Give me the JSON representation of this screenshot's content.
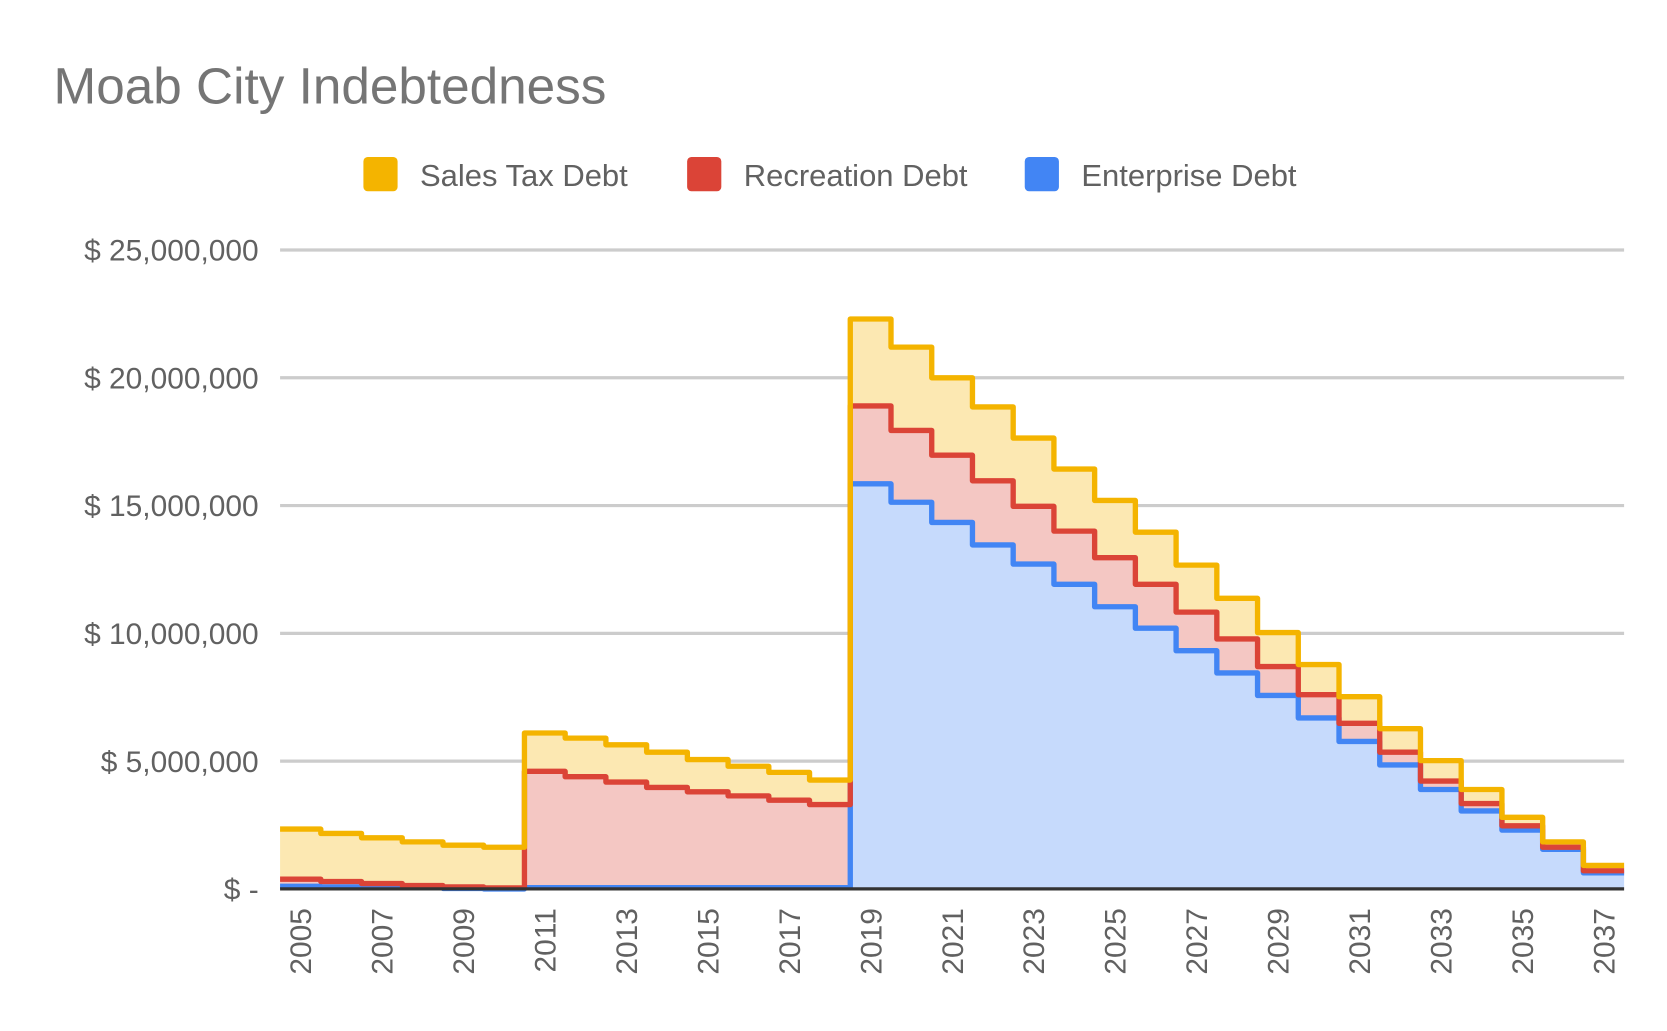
{
  "chart_data": {
    "type": "area",
    "stacked": true,
    "stepped": true,
    "title": "Moab City Indebtedness",
    "xlabel": "",
    "ylabel": "",
    "ylim": [
      0,
      25000000
    ],
    "y_ticks": [
      0,
      5000000,
      10000000,
      15000000,
      20000000,
      25000000
    ],
    "y_tick_labels": [
      "$ -",
      "$ 5,000,000",
      "$ 10,000,000",
      "$ 15,000,000",
      "$ 20,000,000",
      "$ 25,000,000"
    ],
    "x_tick_labels": [
      "2005",
      "2007",
      "2009",
      "2011",
      "2013",
      "2015",
      "2017",
      "2019",
      "2021",
      "2023",
      "2025",
      "2027",
      "2029",
      "2031",
      "2033",
      "2035",
      "2037"
    ],
    "grid": true,
    "legend_position": "top",
    "x": [
      2005,
      2006,
      2007,
      2008,
      2009,
      2010,
      2011,
      2012,
      2013,
      2014,
      2015,
      2016,
      2017,
      2018,
      2019,
      2020,
      2021,
      2022,
      2023,
      2024,
      2025,
      2026,
      2027,
      2028,
      2029,
      2030,
      2031,
      2032,
      2033,
      2034,
      2035,
      2036,
      2037
    ],
    "series": [
      {
        "name": "Enterprise Debt",
        "color": "#4285f4",
        "fill": "#c6dafc",
        "values": [
          100000,
          80000,
          60000,
          40000,
          20000,
          0,
          50000,
          50000,
          50000,
          50000,
          50000,
          50000,
          50000,
          50000,
          15850000,
          15130000,
          14340000,
          13460000,
          12710000,
          11920000,
          11040000,
          10200000,
          9320000,
          8450000,
          7570000,
          6690000,
          5770000,
          4850000,
          3890000,
          3050000,
          2300000,
          1550000,
          630000
        ]
      },
      {
        "name": "Recreation Debt",
        "color": "#db4437",
        "fill": "#f4c7c3",
        "values": [
          280000,
          210000,
          150000,
          90000,
          60000,
          40000,
          4550000,
          4340000,
          4130000,
          3920000,
          3750000,
          3590000,
          3420000,
          3250000,
          3050000,
          2810000,
          2630000,
          2510000,
          2260000,
          2080000,
          1920000,
          1720000,
          1510000,
          1330000,
          1130000,
          910000,
          710000,
          500000,
          330000,
          290000,
          170000,
          80000,
          80000
        ]
      },
      {
        "name": "Sales Tax Debt",
        "color": "#f4b400",
        "fill": "#fce8b2",
        "values": [
          1960000,
          1880000,
          1790000,
          1710000,
          1630000,
          1590000,
          1500000,
          1510000,
          1460000,
          1380000,
          1260000,
          1160000,
          1090000,
          960000,
          3400000,
          3260000,
          3030000,
          2890000,
          2670000,
          2430000,
          2240000,
          2040000,
          1840000,
          1590000,
          1330000,
          1180000,
          1040000,
          920000,
          800000,
          550000,
          330000,
          210000,
          210000
        ]
      }
    ],
    "legend": [
      "Sales Tax Debt",
      "Recreation Debt",
      "Enterprise Debt"
    ]
  }
}
